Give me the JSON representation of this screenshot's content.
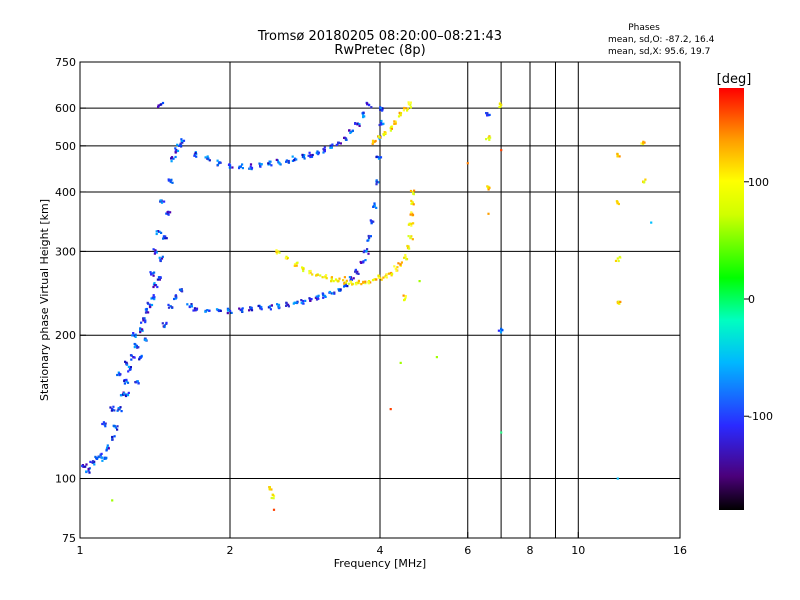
{
  "chart_data": {
    "type": "scatter",
    "title": "Tromsø 20180205 08:20:00–08:21:43",
    "subtitle": "RwPretec (8p)",
    "xlabel": "Frequency [MHz]",
    "ylabel": "Stationary phase Virtual Height [km]",
    "x_scale": "log",
    "y_scale": "log",
    "xlim": [
      1,
      16
    ],
    "ylim": [
      75,
      750
    ],
    "grid": true,
    "x_ticks": [
      1,
      2,
      4,
      6,
      8,
      10,
      16
    ],
    "x_tick_labels": [
      "1",
      "2",
      "4",
      "6",
      "8",
      "10",
      "16"
    ],
    "x_grid": [
      2,
      4,
      6,
      7,
      8,
      9,
      10
    ],
    "y_ticks": [
      75,
      100,
      200,
      300,
      400,
      500,
      600,
      750
    ],
    "y_tick_labels": [
      "75",
      "100",
      "200",
      "300",
      "400",
      "500",
      "600",
      "750"
    ],
    "y_grid": [
      100,
      200,
      300,
      400,
      500,
      600
    ],
    "colorbar": {
      "label": "[deg]",
      "range": [
        -180,
        180
      ],
      "ticks": [
        100,
        0,
        -100
      ],
      "tick_labels": [
        "100",
        "0",
        "-100"
      ],
      "colormap": "rainbow"
    },
    "stats_box": {
      "header": "Phases",
      "line_o": "mean, sd,O: -87.2, 16.4",
      "line_x": "mean, sd,X:  95.6, 19.7"
    },
    "series": [
      {
        "mode": "O",
        "phase_mean": -87.2,
        "points": [
          [
            1.02,
            106
          ],
          [
            1.04,
            104
          ],
          [
            1.06,
            108
          ],
          [
            1.08,
            110
          ],
          [
            1.1,
            112
          ],
          [
            1.12,
            110
          ],
          [
            1.14,
            116
          ],
          [
            1.16,
            122
          ],
          [
            1.18,
            128
          ],
          [
            1.2,
            140
          ],
          [
            1.22,
            150
          ],
          [
            1.24,
            160
          ],
          [
            1.26,
            170
          ],
          [
            1.28,
            180
          ],
          [
            1.3,
            190
          ],
          [
            1.32,
            205
          ],
          [
            1.34,
            215
          ],
          [
            1.36,
            225
          ],
          [
            1.38,
            232
          ],
          [
            1.4,
            240
          ],
          [
            1.42,
            255
          ],
          [
            1.44,
            265
          ],
          [
            1.46,
            290
          ],
          [
            1.48,
            320
          ],
          [
            1.5,
            360
          ],
          [
            1.52,
            420
          ],
          [
            1.54,
            470
          ],
          [
            1.56,
            490
          ],
          [
            1.58,
            500
          ],
          [
            1.6,
            510
          ],
          [
            1.4,
            270
          ],
          [
            1.42,
            300
          ],
          [
            1.44,
            330
          ],
          [
            1.46,
            380
          ],
          [
            1.2,
            165
          ],
          [
            1.24,
            150
          ],
          [
            1.28,
            200
          ],
          [
            1.32,
            180
          ],
          [
            1.36,
            195
          ],
          [
            1.48,
            210
          ],
          [
            1.52,
            230
          ],
          [
            1.56,
            240
          ],
          [
            1.6,
            250
          ],
          [
            1.66,
            230
          ],
          [
            1.7,
            228
          ],
          [
            1.8,
            226
          ],
          [
            1.9,
            225
          ],
          [
            2.0,
            225
          ],
          [
            2.1,
            226
          ],
          [
            2.2,
            227
          ],
          [
            2.3,
            228
          ],
          [
            2.4,
            229
          ],
          [
            2.5,
            230
          ],
          [
            2.6,
            232
          ],
          [
            2.7,
            234
          ],
          [
            2.8,
            236
          ],
          [
            2.9,
            238
          ],
          [
            3.0,
            240
          ],
          [
            3.1,
            242
          ],
          [
            3.2,
            245
          ],
          [
            3.3,
            250
          ],
          [
            3.4,
            255
          ],
          [
            3.5,
            262
          ],
          [
            3.6,
            272
          ],
          [
            3.7,
            285
          ],
          [
            3.75,
            300
          ],
          [
            3.8,
            320
          ],
          [
            3.85,
            345
          ],
          [
            3.9,
            375
          ],
          [
            3.95,
            420
          ],
          [
            3.98,
            470
          ],
          [
            4.0,
            520
          ],
          [
            4.02,
            560
          ],
          [
            4.04,
            600
          ],
          [
            1.7,
            480
          ],
          [
            1.8,
            470
          ],
          [
            1.9,
            460
          ],
          [
            2.0,
            455
          ],
          [
            2.1,
            452
          ],
          [
            2.2,
            452
          ],
          [
            2.3,
            455
          ],
          [
            2.4,
            458
          ],
          [
            2.5,
            462
          ],
          [
            2.6,
            466
          ],
          [
            2.7,
            470
          ],
          [
            2.8,
            474
          ],
          [
            2.9,
            478
          ],
          [
            3.0,
            484
          ],
          [
            3.1,
            490
          ],
          [
            3.2,
            498
          ],
          [
            3.3,
            508
          ],
          [
            3.4,
            520
          ],
          [
            3.5,
            535
          ],
          [
            3.6,
            555
          ],
          [
            3.7,
            580
          ],
          [
            3.8,
            610
          ],
          [
            1.24,
            175
          ],
          [
            1.3,
            160
          ],
          [
            1.16,
            140
          ],
          [
            1.12,
            130
          ],
          [
            1.45,
            610
          ],
          [
            6.6,
            580
          ],
          [
            7.0,
            205
          ]
        ]
      },
      {
        "mode": "X",
        "phase_mean": 95.6,
        "points": [
          [
            2.5,
            300
          ],
          [
            2.6,
            290
          ],
          [
            2.7,
            282
          ],
          [
            2.8,
            276
          ],
          [
            2.9,
            271
          ],
          [
            3.0,
            268
          ],
          [
            3.1,
            265
          ],
          [
            3.2,
            262
          ],
          [
            3.3,
            260
          ],
          [
            3.4,
            258
          ],
          [
            3.5,
            258
          ],
          [
            3.6,
            258
          ],
          [
            3.7,
            259
          ],
          [
            3.8,
            260
          ],
          [
            3.9,
            262
          ],
          [
            4.0,
            264
          ],
          [
            4.1,
            266
          ],
          [
            4.2,
            270
          ],
          [
            4.3,
            276
          ],
          [
            4.4,
            282
          ],
          [
            4.5,
            292
          ],
          [
            4.55,
            305
          ],
          [
            4.6,
            320
          ],
          [
            4.62,
            340
          ],
          [
            4.64,
            360
          ],
          [
            4.65,
            380
          ],
          [
            4.66,
            400
          ],
          [
            3.9,
            510
          ],
          [
            4.0,
            520
          ],
          [
            4.1,
            530
          ],
          [
            4.2,
            545
          ],
          [
            4.3,
            560
          ],
          [
            4.4,
            580
          ],
          [
            4.5,
            600
          ],
          [
            4.6,
            610
          ],
          [
            2.4,
            95
          ],
          [
            2.45,
            92
          ],
          [
            4.5,
            240
          ],
          [
            6.6,
            520
          ],
          [
            6.6,
            410
          ],
          [
            12.0,
            480
          ],
          [
            12.0,
            380
          ],
          [
            12.0,
            290
          ],
          [
            12.0,
            235
          ],
          [
            13.5,
            420
          ],
          [
            13.5,
            510
          ],
          [
            7.0,
            610
          ]
        ]
      },
      {
        "mode": "noise",
        "points": [
          [
            1.16,
            90
          ],
          [
            2.45,
            86
          ],
          [
            3.4,
            265
          ],
          [
            4.2,
            140
          ],
          [
            4.4,
            175
          ],
          [
            4.8,
            260
          ],
          [
            5.2,
            180
          ],
          [
            6.0,
            460
          ],
          [
            6.6,
            360
          ],
          [
            7.0,
            490
          ],
          [
            7.0,
            125
          ],
          [
            12.0,
            100
          ],
          [
            14.0,
            345
          ]
        ]
      }
    ]
  }
}
